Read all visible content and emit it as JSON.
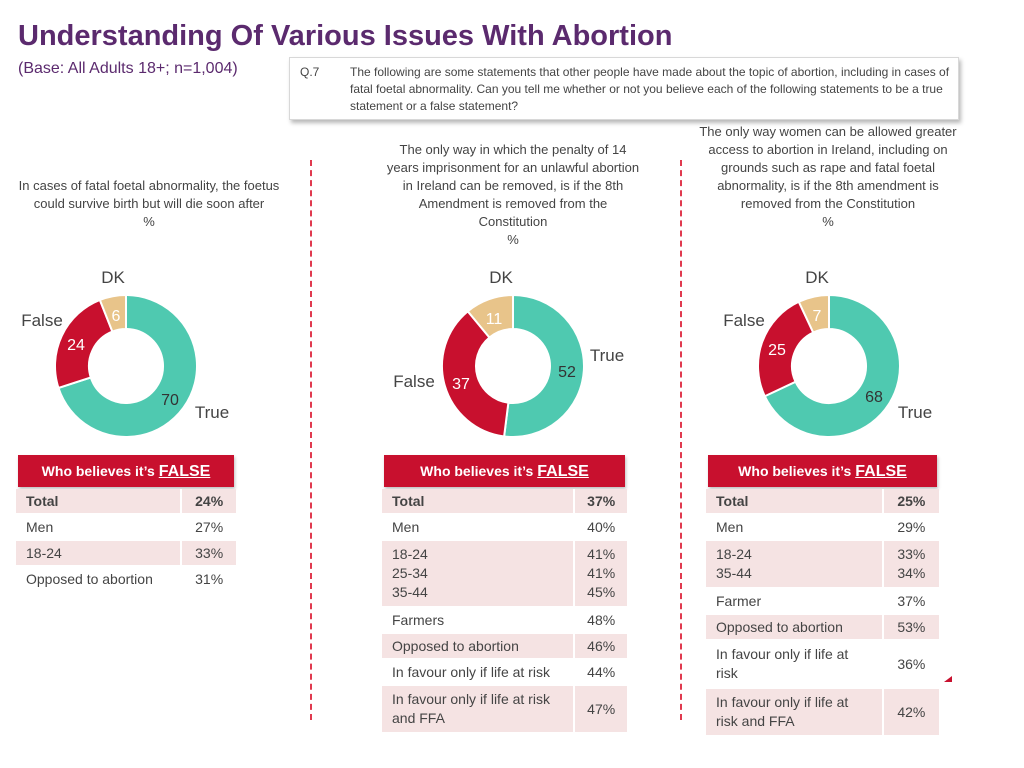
{
  "header": {
    "title": "Understanding Of Various Issues With Abortion",
    "base": "(Base: All Adults 18+; n=1,004)",
    "q_number": "Q.7",
    "q_text": "The following are some statements that other people have made about the topic of abortion, including in cases of fatal foetal abnormality. Can you tell me whether or not you believe each of the following statements to be a true statement or a false statement?"
  },
  "chart_data": [
    {
      "type": "pie",
      "title": "In cases of fatal foetal abnormality, the foetus could survive birth but will die soon after",
      "unit": "%",
      "categories": [
        "True",
        "False",
        "DK"
      ],
      "values": [
        70,
        24,
        6
      ],
      "colors": [
        "#4fc9b0",
        "#c8102e",
        "#e8c48a"
      ]
    },
    {
      "type": "pie",
      "title": "The only way in which the penalty of 14 years imprisonment for an unlawful abortion in Ireland can be removed, is if the 8th Amendment is removed from the Constitution",
      "unit": "%",
      "categories": [
        "True",
        "False",
        "DK"
      ],
      "values": [
        52,
        37,
        11
      ],
      "colors": [
        "#4fc9b0",
        "#c8102e",
        "#e8c48a"
      ]
    },
    {
      "type": "pie",
      "title": "The only way women can be allowed greater access to abortion in Ireland, including on grounds such as rape and fatal foetal abnormality, is if the 8th amendment is removed from the Constitution",
      "unit": "%",
      "categories": [
        "True",
        "False",
        "DK"
      ],
      "values": [
        68,
        25,
        7
      ],
      "colors": [
        "#4fc9b0",
        "#c8102e",
        "#e8c48a"
      ]
    }
  ],
  "tables": [
    {
      "header_prefix": "Who believes it’s",
      "header_emph": "FALSE",
      "rows": [
        {
          "label": "Total",
          "value": "24%"
        },
        {
          "label": "Men",
          "value": "27%"
        },
        {
          "label": "18-24",
          "value": "33%"
        },
        {
          "label": "Opposed to abortion",
          "value": "31%"
        }
      ]
    },
    {
      "header_prefix": "Who believes it’s",
      "header_emph": "FALSE",
      "rows": [
        {
          "label": "Total",
          "value": "37%"
        },
        {
          "label": "Men",
          "value": "40%"
        },
        {
          "label": [
            "18-24",
            "25-34",
            "35-44"
          ],
          "value": [
            "41%",
            "41%",
            "45%"
          ]
        },
        {
          "label": "Farmers",
          "value": "48%"
        },
        {
          "label": "Opposed to abortion",
          "value": "46%"
        },
        {
          "label": "In favour only if life at risk",
          "value": "44%"
        },
        {
          "label": [
            "In favour only if life at risk",
            "and FFA"
          ],
          "value": "47%"
        }
      ]
    },
    {
      "header_prefix": "Who believes it’s",
      "header_emph": "FALSE",
      "rows": [
        {
          "label": "Total",
          "value": "25%"
        },
        {
          "label": "Men",
          "value": "29%"
        },
        {
          "label": [
            "18-24",
            "35-44"
          ],
          "value": [
            "33%",
            "34%"
          ]
        },
        {
          "label": "Farmer",
          "value": "37%"
        },
        {
          "label": "Opposed to abortion",
          "value": "53%"
        },
        {
          "label": [
            "In favour only if life at",
            "risk"
          ],
          "value": "36%"
        },
        {
          "label": [
            "In favour only if life at",
            "risk and FFA"
          ],
          "value": "42%"
        }
      ]
    }
  ]
}
